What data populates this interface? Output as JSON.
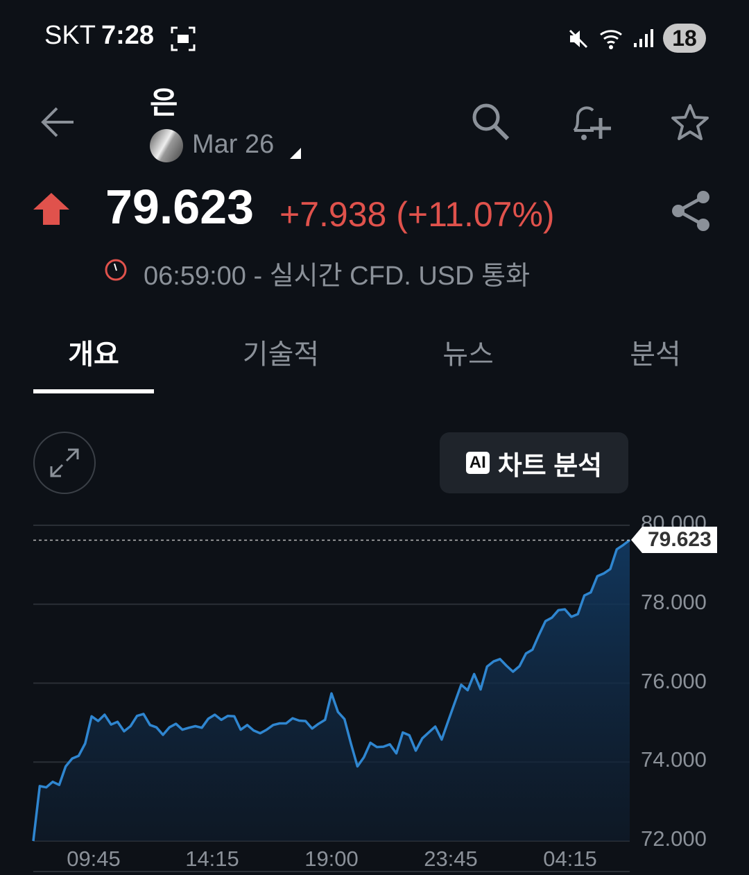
{
  "status_bar": {
    "carrier": "SKT",
    "time": "7:28",
    "battery": "18",
    "icons": [
      "screenshot-icon",
      "mute-icon",
      "wifi-icon",
      "signal-icon"
    ]
  },
  "header": {
    "title": "은",
    "contract": "Mar 26",
    "icons": [
      "back-arrow-icon",
      "search-icon",
      "add-alert-icon",
      "star-icon"
    ]
  },
  "quote": {
    "price": "79.623",
    "change": "+7.938 (+11.07%)",
    "direction": "up",
    "timestamp_line": "06:59:00 - 실시간 CFD. USD 통화",
    "up_color": "#e0524c"
  },
  "tabs": [
    {
      "label": "개요",
      "active": true
    },
    {
      "label": "기술적"
    },
    {
      "label": "뉴스"
    },
    {
      "label": "분석"
    }
  ],
  "chart_controls": {
    "ai_badge": "AI",
    "ai_button": "차트 분석"
  },
  "chart_data": {
    "type": "area",
    "line_color": "#2f86d0",
    "ylim": [
      72,
      80
    ],
    "y_ticks": [
      "80.000",
      "78.000",
      "76.000",
      "74.000",
      "72.000"
    ],
    "x_ticks": [
      "09:45",
      "14:15",
      "19:00",
      "23:45",
      "04:15"
    ],
    "last_value_label": "79.623",
    "grid": true,
    "values": [
      72.0,
      73.39,
      73.36,
      73.5,
      73.42,
      73.89,
      74.09,
      74.16,
      74.47,
      75.16,
      75.04,
      75.2,
      74.95,
      75.02,
      74.78,
      74.91,
      75.17,
      75.22,
      74.94,
      74.88,
      74.69,
      74.88,
      74.97,
      74.82,
      74.87,
      74.91,
      74.87,
      75.1,
      75.2,
      75.07,
      75.17,
      75.16,
      74.82,
      74.94,
      74.8,
      74.73,
      74.82,
      74.94,
      74.98,
      74.98,
      75.11,
      75.05,
      75.04,
      74.85,
      74.97,
      75.07,
      75.74,
      75.27,
      75.09,
      74.47,
      73.89,
      74.12,
      74.49,
      74.38,
      74.39,
      74.45,
      74.22,
      74.75,
      74.68,
      74.29,
      74.6,
      74.75,
      74.9,
      74.57,
      75.04,
      75.5,
      75.96,
      75.82,
      76.23,
      75.84,
      76.42,
      76.55,
      76.61,
      76.44,
      76.29,
      76.43,
      76.75,
      76.85,
      77.22,
      77.57,
      77.66,
      77.85,
      77.87,
      77.68,
      77.75,
      78.22,
      78.3,
      78.71,
      78.78,
      78.89,
      79.39,
      79.5,
      79.623
    ]
  }
}
